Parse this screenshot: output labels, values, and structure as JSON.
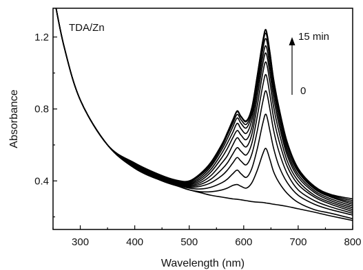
{
  "chart_data": {
    "type": "line",
    "title": "",
    "xlabel": "Wavelength (nm)",
    "ylabel": "Absorbance",
    "xlim": [
      250,
      800
    ],
    "ylim": [
      0.13,
      1.36
    ],
    "xticks": [
      300,
      400,
      500,
      600,
      700,
      800
    ],
    "yticks": [
      0.4,
      0.8,
      1.2
    ],
    "ytick_labels": [
      "0.4",
      "0.8",
      "1.2"
    ],
    "grid": false,
    "legend": "none",
    "line_color": "#000000",
    "annotations": {
      "sample_label": "TDA/Zn",
      "arrow_top_label": "15 min",
      "arrow_bottom_label": "0"
    },
    "x": [
      250,
      270,
      300,
      350,
      400,
      450,
      480,
      500,
      520,
      540,
      560,
      570,
      580,
      588,
      595,
      605,
      615,
      625,
      635,
      641,
      648,
      655,
      665,
      680,
      700,
      730,
      760,
      800
    ],
    "series": [
      {
        "values": [
          1.45,
          1.15,
          0.85,
          0.6,
          0.47,
          0.4,
          0.37,
          0.35,
          0.335,
          0.32,
          0.31,
          0.305,
          0.3,
          0.298,
          0.295,
          0.29,
          0.285,
          0.282,
          0.28,
          0.277,
          0.274,
          0.27,
          0.266,
          0.258,
          0.245,
          0.226,
          0.205,
          0.18
        ]
      },
      {
        "values": [
          1.45,
          1.15,
          0.85,
          0.6,
          0.47,
          0.4,
          0.37,
          0.35,
          0.34,
          0.34,
          0.35,
          0.36,
          0.375,
          0.38,
          0.37,
          0.36,
          0.39,
          0.46,
          0.55,
          0.58,
          0.52,
          0.45,
          0.39,
          0.33,
          0.28,
          0.24,
          0.22,
          0.19
        ]
      },
      {
        "values": [
          1.45,
          1.15,
          0.85,
          0.6,
          0.475,
          0.405,
          0.375,
          0.36,
          0.355,
          0.365,
          0.39,
          0.41,
          0.44,
          0.46,
          0.44,
          0.42,
          0.47,
          0.58,
          0.72,
          0.77,
          0.68,
          0.58,
          0.48,
          0.39,
          0.32,
          0.27,
          0.24,
          0.21
        ]
      },
      {
        "values": [
          1.45,
          1.15,
          0.85,
          0.6,
          0.48,
          0.41,
          0.38,
          0.365,
          0.37,
          0.39,
          0.43,
          0.46,
          0.5,
          0.53,
          0.51,
          0.49,
          0.55,
          0.68,
          0.84,
          0.9,
          0.8,
          0.68,
          0.56,
          0.44,
          0.35,
          0.29,
          0.255,
          0.22
        ]
      },
      {
        "values": [
          1.45,
          1.15,
          0.85,
          0.6,
          0.48,
          0.41,
          0.385,
          0.37,
          0.38,
          0.41,
          0.465,
          0.5,
          0.55,
          0.585,
          0.565,
          0.545,
          0.61,
          0.76,
          0.93,
          0.99,
          0.88,
          0.75,
          0.62,
          0.48,
          0.38,
          0.31,
          0.27,
          0.23
        ]
      },
      {
        "values": [
          1.45,
          1.15,
          0.85,
          0.6,
          0.485,
          0.415,
          0.39,
          0.375,
          0.39,
          0.43,
          0.5,
          0.54,
          0.6,
          0.64,
          0.615,
          0.59,
          0.66,
          0.82,
          1.0,
          1.06,
          0.95,
          0.81,
          0.67,
          0.51,
          0.4,
          0.32,
          0.28,
          0.24
        ]
      },
      {
        "values": [
          1.45,
          1.15,
          0.85,
          0.6,
          0.485,
          0.415,
          0.392,
          0.38,
          0.4,
          0.45,
          0.53,
          0.58,
          0.64,
          0.68,
          0.655,
          0.63,
          0.7,
          0.87,
          1.05,
          1.11,
          1.0,
          0.86,
          0.71,
          0.54,
          0.42,
          0.335,
          0.29,
          0.25
        ]
      },
      {
        "values": [
          1.45,
          1.15,
          0.85,
          0.6,
          0.49,
          0.42,
          0.395,
          0.385,
          0.41,
          0.465,
          0.555,
          0.61,
          0.67,
          0.72,
          0.69,
          0.665,
          0.74,
          0.91,
          1.09,
          1.15,
          1.04,
          0.9,
          0.74,
          0.56,
          0.435,
          0.345,
          0.3,
          0.26
        ]
      },
      {
        "values": [
          1.45,
          1.15,
          0.85,
          0.6,
          0.49,
          0.42,
          0.397,
          0.39,
          0.42,
          0.48,
          0.575,
          0.635,
          0.7,
          0.75,
          0.72,
          0.695,
          0.77,
          0.94,
          1.13,
          1.19,
          1.08,
          0.93,
          0.77,
          0.58,
          0.45,
          0.355,
          0.31,
          0.27
        ]
      },
      {
        "values": [
          1.45,
          1.15,
          0.85,
          0.6,
          0.495,
          0.425,
          0.4,
          0.395,
          0.43,
          0.49,
          0.59,
          0.655,
          0.72,
          0.77,
          0.74,
          0.715,
          0.79,
          0.97,
          1.16,
          1.22,
          1.1,
          0.95,
          0.79,
          0.6,
          0.46,
          0.36,
          0.315,
          0.28
        ]
      },
      {
        "values": [
          1.45,
          1.15,
          0.85,
          0.6,
          0.495,
          0.425,
          0.4,
          0.398,
          0.435,
          0.5,
          0.6,
          0.665,
          0.735,
          0.785,
          0.755,
          0.73,
          0.805,
          0.985,
          1.175,
          1.235,
          1.115,
          0.96,
          0.8,
          0.61,
          0.465,
          0.365,
          0.32,
          0.29
        ]
      },
      {
        "values": [
          1.45,
          1.15,
          0.85,
          0.6,
          0.5,
          0.43,
          0.402,
          0.4,
          0.44,
          0.505,
          0.605,
          0.67,
          0.74,
          0.79,
          0.76,
          0.735,
          0.81,
          0.99,
          1.18,
          1.24,
          1.12,
          0.965,
          0.805,
          0.615,
          0.47,
          0.37,
          0.325,
          0.3
        ]
      }
    ]
  }
}
